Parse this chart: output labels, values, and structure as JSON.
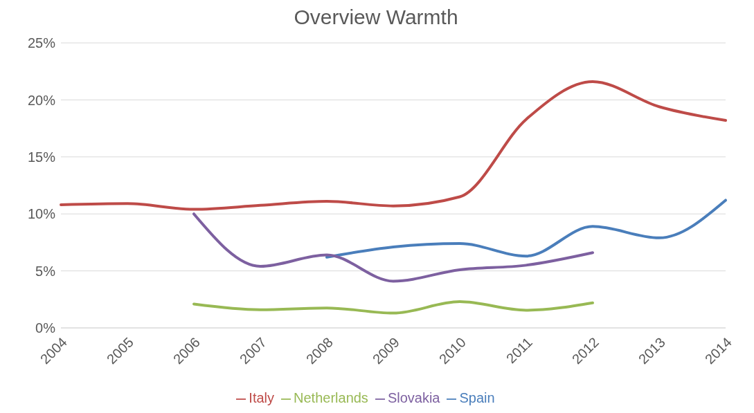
{
  "chart_data": {
    "type": "line",
    "title": "Overview Warmth",
    "categories": [
      "2004",
      "2005",
      "2006",
      "2007",
      "2008",
      "2009",
      "2010",
      "2011",
      "2012",
      "2013",
      "2014"
    ],
    "series": [
      {
        "name": "Spain",
        "color": "#4a7ebb",
        "values": [
          null,
          null,
          null,
          null,
          6.2,
          7.1,
          7.4,
          6.3,
          8.9,
          7.9,
          11.2
        ]
      },
      {
        "name": "Italy",
        "color": "#be4b48",
        "values": [
          10.8,
          10.9,
          10.4,
          10.75,
          11.1,
          10.7,
          11.5,
          18.3,
          21.6,
          19.4,
          18.2
        ]
      },
      {
        "name": "Netherlands",
        "color": "#98b954",
        "values": [
          null,
          null,
          2.1,
          1.6,
          1.75,
          1.3,
          2.3,
          1.55,
          2.2,
          null,
          null
        ]
      },
      {
        "name": "Slovakia",
        "color": "#7d60a0",
        "values": [
          null,
          null,
          10.0,
          5.4,
          6.4,
          4.1,
          5.1,
          5.5,
          6.6,
          null,
          null
        ]
      }
    ],
    "ylim": [
      0,
      25
    ],
    "yticks": [
      {
        "value": 0,
        "label": "0%"
      },
      {
        "value": 5,
        "label": "5%"
      },
      {
        "value": 10,
        "label": "10%"
      },
      {
        "value": 15,
        "label": "15%"
      },
      {
        "value": 20,
        "label": "20%"
      },
      {
        "value": 25,
        "label": "25%"
      }
    ],
    "grid": "y",
    "legend": "bottom",
    "marker": "none",
    "line_style": "solid"
  }
}
